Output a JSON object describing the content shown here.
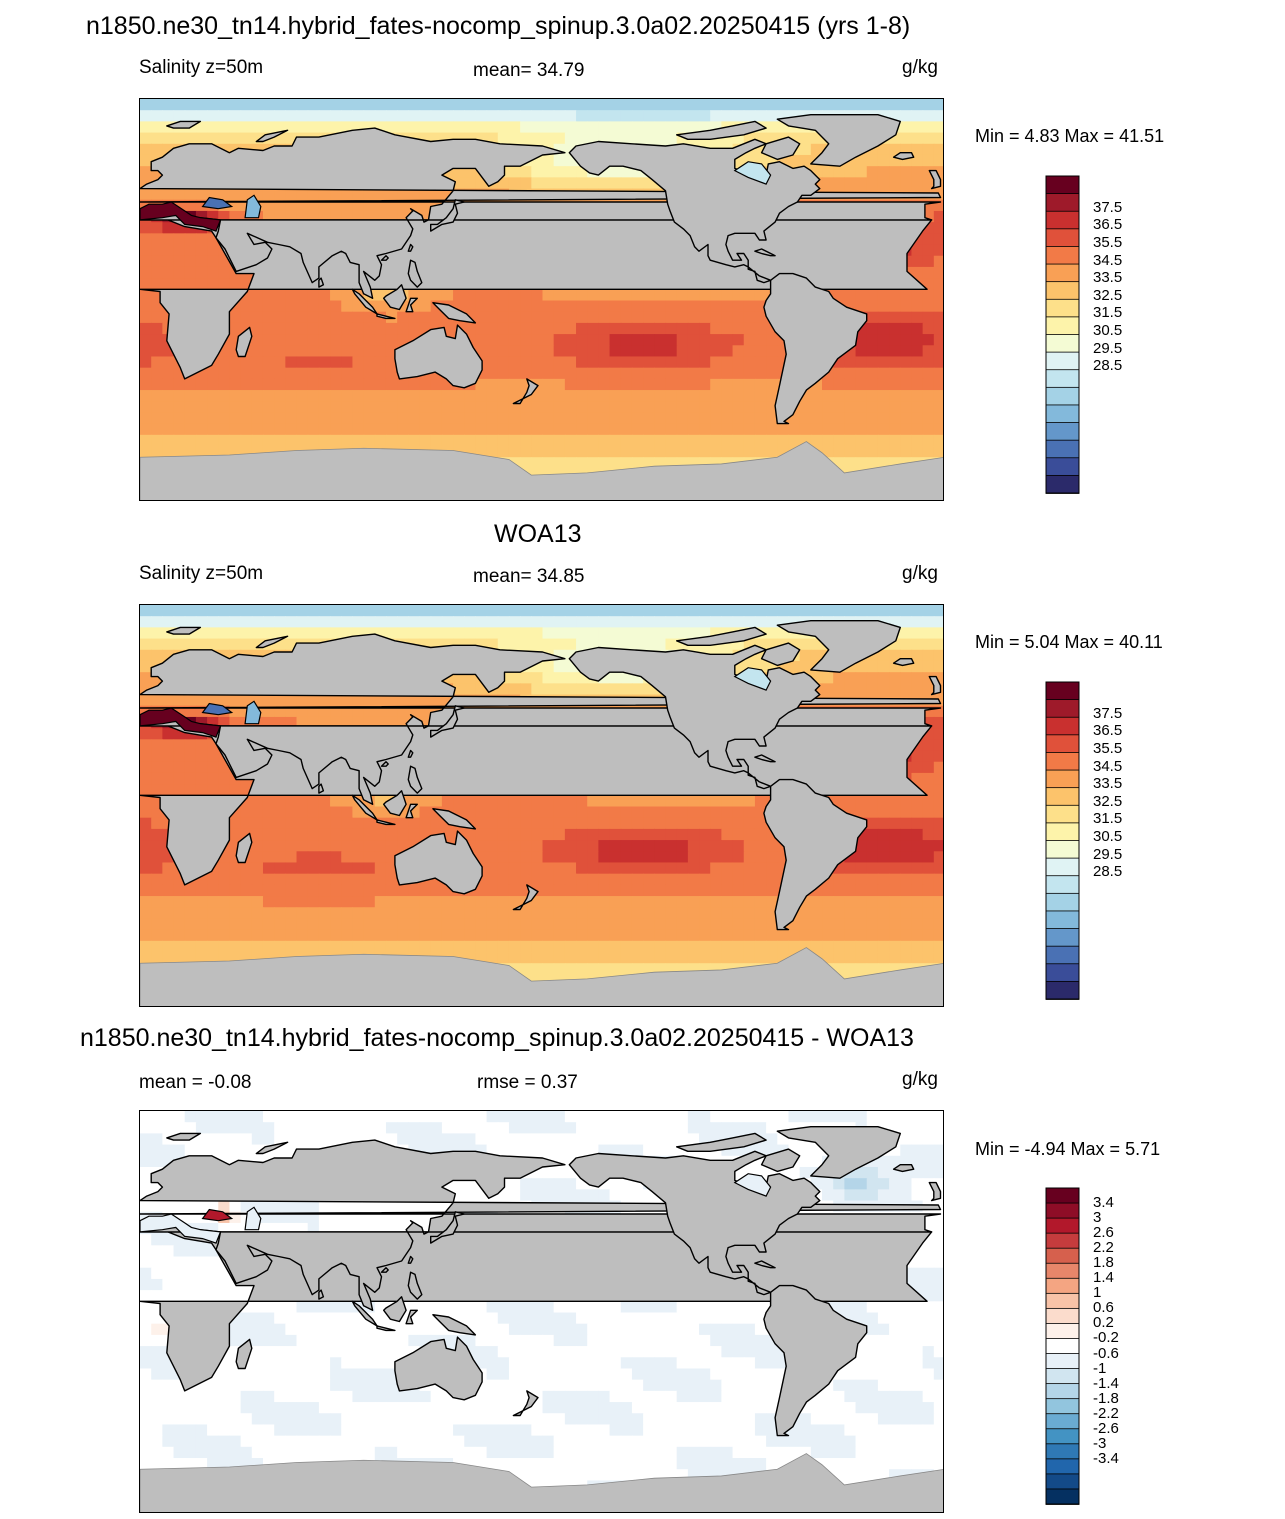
{
  "panels": [
    {
      "title": "n1850.ne30_tn14.hybrid_fates-nocomp_spinup.3.0a02.20250415 (yrs 1-8)",
      "left_label": "Salinity z=50m",
      "center_label": "mean=  34.79",
      "units": "g/kg",
      "minmax": "Min =   4.83 Max =  41.51",
      "palette": "salinity"
    },
    {
      "title": "WOA13",
      "left_label": "Salinity z=50m",
      "center_label": "mean=  34.85",
      "units": "g/kg",
      "minmax": "Min =   5.04 Max =  40.11",
      "palette": "salinity"
    },
    {
      "title": "n1850.ne30_tn14.hybrid_fates-nocomp_spinup.3.0a02.20250415 - WOA13",
      "left_label": "mean =  -0.08",
      "center_label": "rmse =   0.37",
      "units": "g/kg",
      "minmax": "Min =  -4.94 Max =   5.71",
      "palette": "difference"
    }
  ],
  "colorbars": {
    "salinity": {
      "labels": [
        "37.5",
        "36.5",
        "35.5",
        "34.5",
        "33.5",
        "32.5",
        "31.5",
        "30.5",
        "29.5",
        "28.5"
      ],
      "colors": [
        "#67001f",
        "#9e1a2a",
        "#c9302f",
        "#e0513a",
        "#f27a47",
        "#f9a055",
        "#fcc36b",
        "#fde08a",
        "#fdf3aa",
        "#f4fbd4",
        "#e0f3f4",
        "#c3e5ef",
        "#a4d2e6",
        "#83b9db",
        "#6497ca",
        "#4a71b4",
        "#3a4d99",
        "#2b2a6a"
      ]
    },
    "difference": {
      "labels": [
        "3.4",
        "3",
        "2.6",
        "2.2",
        "1.8",
        "1.4",
        "1",
        "0.6",
        "0.2",
        "-0.2",
        "-0.6",
        "-1",
        "-1.4",
        "-1.8",
        "-2.2",
        "-2.6",
        "-3",
        "-3.4"
      ],
      "colors": [
        "#67001f",
        "#8e0d27",
        "#b2182b",
        "#c53c3d",
        "#d6604d",
        "#e7866a",
        "#f4a582",
        "#f8c3a8",
        "#fbdccc",
        "#fdf1ea",
        "#ffffff",
        "#e8f1f8",
        "#d1e5f0",
        "#b4d5e8",
        "#92c5de",
        "#6aabd2",
        "#4393c3",
        "#2f79b5",
        "#2166ac",
        "#134a88",
        "#053061"
      ]
    }
  },
  "map_colors": {
    "land": "#bebebe",
    "coast": "#000000"
  }
}
